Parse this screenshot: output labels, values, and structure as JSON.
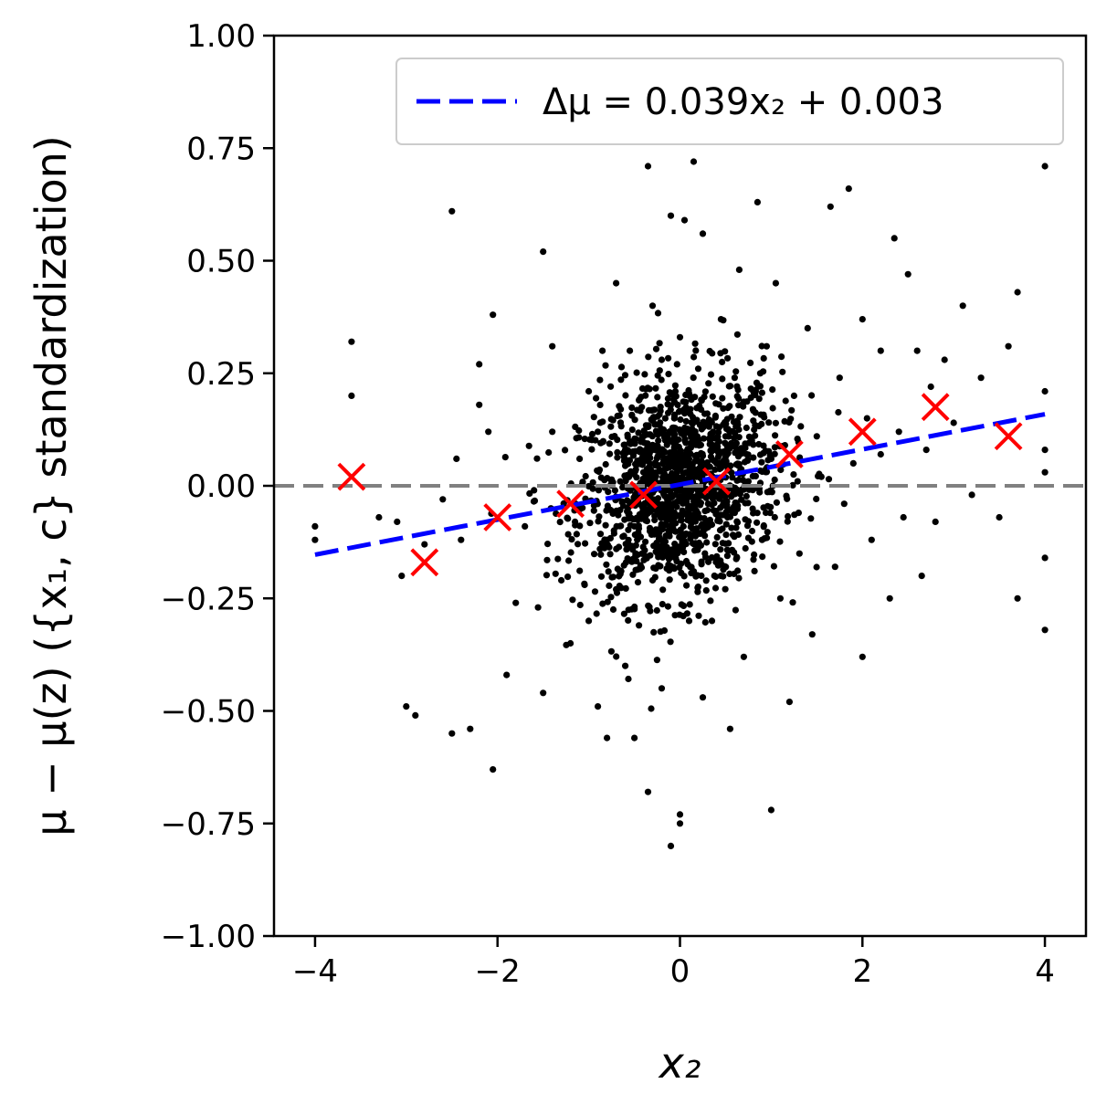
{
  "chart_data": {
    "type": "scatter",
    "xlabel": "x₂",
    "ylabel": "μ − μ(z)    ({x₁, c} standardization)",
    "xlim": [
      -4.45,
      4.45
    ],
    "ylim": [
      -1.0,
      1.0
    ],
    "xticks": [
      -4,
      -2,
      0,
      2,
      4
    ],
    "xtick_labels": [
      "−4",
      "−2",
      "0",
      "2",
      "4"
    ],
    "yticks": [
      1.0,
      0.75,
      0.5,
      0.25,
      0.0,
      -0.25,
      -0.5,
      -0.75,
      -1.0
    ],
    "ytick_labels": [
      "1.00",
      "0.75",
      "0.50",
      "0.25",
      "0.00",
      "−0.25",
      "−0.50",
      "−0.75",
      "−1.00"
    ],
    "grid": false,
    "legend_position": "top-right",
    "reference_line": {
      "y": 0.0,
      "style": "dashed",
      "color": "#808080"
    },
    "fit_line": {
      "name": "Δμ = 0.039x₂ + 0.003",
      "slope": 0.039,
      "intercept": 0.003,
      "x_range": [
        -4.0,
        4.0
      ],
      "color": "#0000ff",
      "style": "dashed"
    },
    "binned_means": {
      "marker": "x",
      "color": "#ff0000",
      "x": [
        -3.6,
        -2.8,
        -2.0,
        -1.2,
        -0.4,
        0.4,
        1.2,
        2.0,
        2.8,
        3.6
      ],
      "y": [
        0.02,
        -0.17,
        -0.07,
        -0.04,
        -0.02,
        0.01,
        0.07,
        0.12,
        0.175,
        0.11
      ]
    },
    "scatter": {
      "marker": "dot",
      "color": "#000000",
      "points": [
        [
          -4.0,
          -0.09
        ],
        [
          -4.0,
          -0.12
        ],
        [
          -3.6,
          0.32
        ],
        [
          -3.6,
          0.2
        ],
        [
          -3.3,
          -0.07
        ],
        [
          -3.1,
          -0.08
        ],
        [
          -3.05,
          -0.2
        ],
        [
          -3.0,
          -0.49
        ],
        [
          -2.9,
          -0.51
        ],
        [
          -2.8,
          -0.13
        ],
        [
          -2.6,
          -0.03
        ],
        [
          -2.5,
          0.61
        ],
        [
          -2.5,
          -0.55
        ],
        [
          -2.45,
          0.06
        ],
        [
          -2.4,
          -0.12
        ],
        [
          -2.3,
          -0.54
        ],
        [
          -2.2,
          0.18
        ],
        [
          -2.2,
          0.27
        ],
        [
          -2.1,
          0.12
        ],
        [
          -2.05,
          0.38
        ],
        [
          -2.05,
          -0.63
        ],
        [
          -1.9,
          -0.42
        ],
        [
          -1.8,
          -0.26
        ],
        [
          -1.7,
          -0.09
        ],
        [
          -1.6,
          -0.01
        ],
        [
          -1.5,
          0.52
        ],
        [
          -1.5,
          -0.46
        ],
        [
          -1.4,
          0.31
        ],
        [
          -1.4,
          0.12
        ],
        [
          -1.3,
          -0.21
        ],
        [
          -1.2,
          -0.35
        ],
        [
          -1.15,
          -0.08
        ],
        [
          -1.1,
          0.06
        ],
        [
          -1.0,
          -0.3
        ],
        [
          -1.0,
          0.21
        ],
        [
          -0.9,
          0.12
        ],
        [
          -0.9,
          -0.49
        ],
        [
          -0.85,
          0.3
        ],
        [
          -0.8,
          -0.12
        ],
        [
          -0.8,
          -0.56
        ],
        [
          -0.75,
          0.01
        ],
        [
          -0.7,
          0.45
        ],
        [
          -0.7,
          -0.23
        ],
        [
          -0.65,
          0.17
        ],
        [
          -0.6,
          -0.4
        ],
        [
          -0.6,
          0.08
        ],
        [
          -0.55,
          0.3
        ],
        [
          -0.5,
          -0.09
        ],
        [
          -0.5,
          -0.56
        ],
        [
          -0.45,
          0.19
        ],
        [
          -0.45,
          -0.31
        ],
        [
          -0.4,
          0.03
        ],
        [
          -0.35,
          0.71
        ],
        [
          -0.35,
          -0.68
        ],
        [
          -0.3,
          0.4
        ],
        [
          -0.3,
          -0.21
        ],
        [
          -0.25,
          0.12
        ],
        [
          -0.25,
          -0.05
        ],
        [
          -0.2,
          0.28
        ],
        [
          -0.2,
          -0.45
        ],
        [
          -0.15,
          0.06
        ],
        [
          -0.15,
          -0.14
        ],
        [
          -0.1,
          0.6
        ],
        [
          -0.1,
          -0.8
        ],
        [
          -0.05,
          0.21
        ],
        [
          -0.05,
          -0.02
        ],
        [
          0.0,
          -0.75
        ],
        [
          0.0,
          -0.73
        ],
        [
          0.0,
          0.33
        ],
        [
          0.05,
          0.59
        ],
        [
          0.05,
          -0.11
        ],
        [
          0.1,
          0.06
        ],
        [
          0.1,
          -0.3
        ],
        [
          0.15,
          0.72
        ],
        [
          0.15,
          -0.19
        ],
        [
          0.2,
          0.02
        ],
        [
          0.2,
          0.26
        ],
        [
          0.25,
          0.56
        ],
        [
          0.25,
          -0.47
        ],
        [
          0.3,
          -0.08
        ],
        [
          0.3,
          0.14
        ],
        [
          0.35,
          -0.3
        ],
        [
          0.4,
          0.05
        ],
        [
          0.45,
          0.37
        ],
        [
          0.45,
          -0.2
        ],
        [
          0.5,
          0.11
        ],
        [
          0.55,
          -0.54
        ],
        [
          0.6,
          0.24
        ],
        [
          0.6,
          -0.06
        ],
        [
          0.65,
          0.48
        ],
        [
          0.7,
          -0.38
        ],
        [
          0.75,
          0.01
        ],
        [
          0.8,
          0.17
        ],
        [
          0.85,
          0.63
        ],
        [
          0.9,
          -0.12
        ],
        [
          0.95,
          0.31
        ],
        [
          1.0,
          -0.72
        ],
        [
          1.0,
          0.06
        ],
        [
          1.05,
          0.45
        ],
        [
          1.1,
          -0.25
        ],
        [
          1.15,
          0.09
        ],
        [
          1.2,
          -0.48
        ],
        [
          1.25,
          0.2
        ],
        [
          1.3,
          -0.06
        ],
        [
          1.4,
          0.35
        ],
        [
          1.45,
          -0.33
        ],
        [
          1.5,
          0.11
        ],
        [
          1.55,
          0.02
        ],
        [
          1.65,
          0.62
        ],
        [
          1.7,
          -0.18
        ],
        [
          1.75,
          0.24
        ],
        [
          1.8,
          -0.04
        ],
        [
          1.85,
          0.66
        ],
        [
          1.9,
          0.05
        ],
        [
          2.0,
          0.37
        ],
        [
          2.0,
          -0.38
        ],
        [
          2.05,
          0.15
        ],
        [
          2.1,
          -0.12
        ],
        [
          2.2,
          0.3
        ],
        [
          2.2,
          0.07
        ],
        [
          2.3,
          -0.25
        ],
        [
          2.35,
          0.55
        ],
        [
          2.4,
          0.12
        ],
        [
          2.45,
          -0.07
        ],
        [
          2.5,
          0.47
        ],
        [
          2.6,
          0.3
        ],
        [
          2.65,
          -0.2
        ],
        [
          2.7,
          0.08
        ],
        [
          2.75,
          0.22
        ],
        [
          2.8,
          -0.08
        ],
        [
          2.9,
          0.28
        ],
        [
          3.0,
          0.14
        ],
        [
          3.1,
          0.4
        ],
        [
          3.2,
          -0.02
        ],
        [
          3.3,
          0.24
        ],
        [
          3.5,
          -0.07
        ],
        [
          3.6,
          0.31
        ],
        [
          3.7,
          0.43
        ],
        [
          3.7,
          -0.25
        ],
        [
          4.0,
          0.71
        ],
        [
          4.0,
          0.21
        ],
        [
          4.0,
          0.08
        ],
        [
          4.0,
          0.03
        ],
        [
          4.0,
          -0.16
        ],
        [
          4.0,
          -0.32
        ]
      ],
      "cloud": {
        "note": "dense core of ~1500 points",
        "mean_x": 0.0,
        "sd_x": 0.55,
        "mean_y": 0.0,
        "sd_y": 0.12,
        "count": 1450
      }
    }
  }
}
